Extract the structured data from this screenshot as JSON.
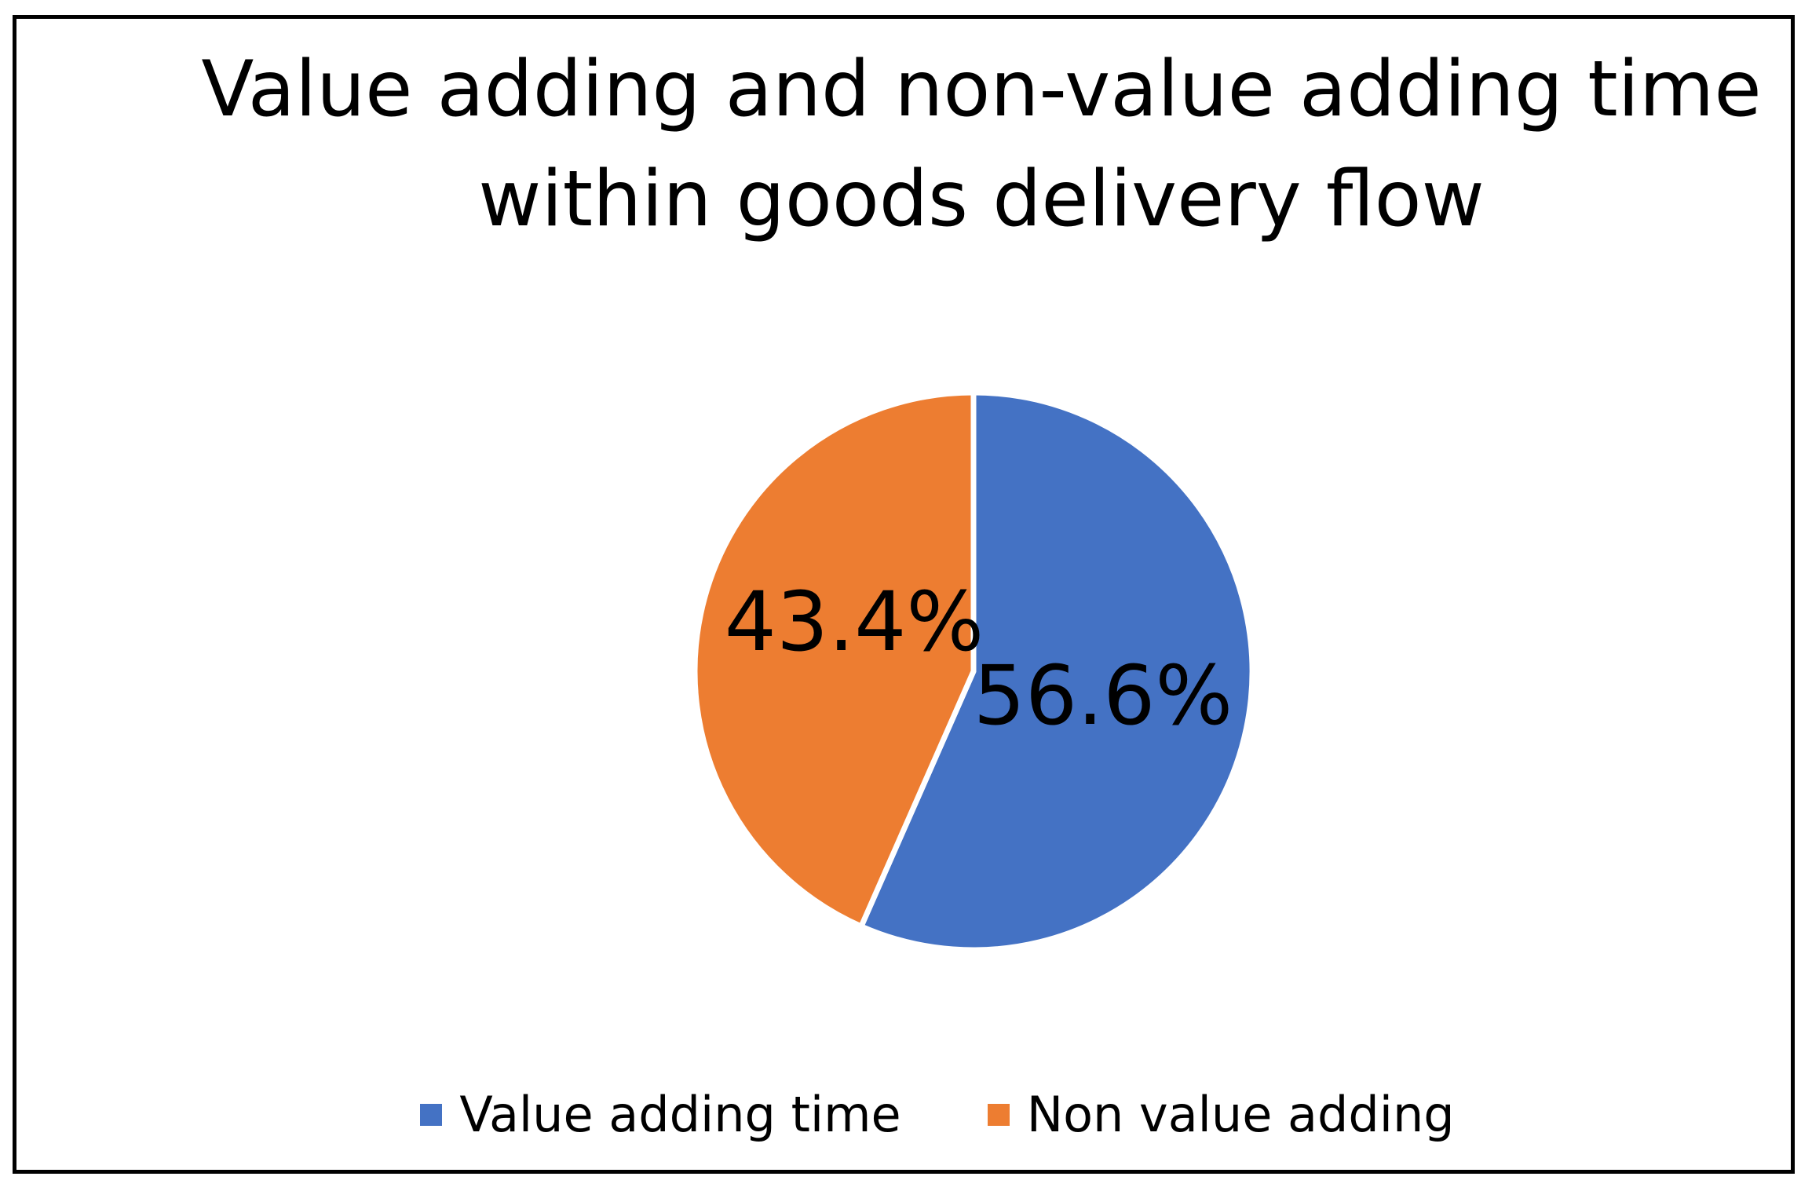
{
  "chart_data": {
    "type": "pie",
    "title_lines": [
      "Value adding and non-value adding time",
      "within goods delivery flow"
    ],
    "categories": [
      "Value adding time",
      "Non value adding"
    ],
    "values": [
      56.6,
      43.4
    ],
    "labels": [
      "56.6%",
      "43.4%"
    ],
    "colors": [
      "#4472C4",
      "#ED7D31"
    ],
    "legend_position": "bottom",
    "start_angle": "12 o'clock, clockwise"
  }
}
